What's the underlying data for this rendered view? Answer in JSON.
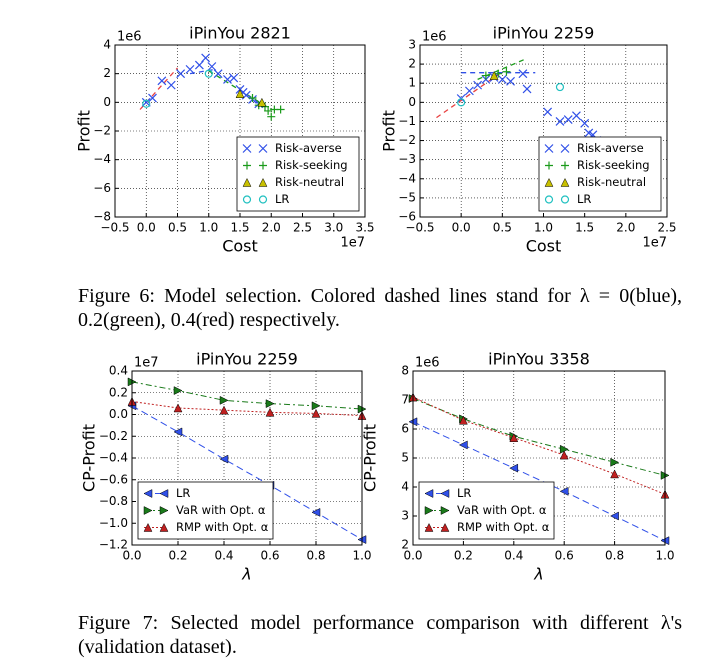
{
  "chart_data": [
    {
      "type": "scatter",
      "title": "iPinYou 2821",
      "x_label": "Cost",
      "y_label": "Profit",
      "x_offset_label": "1e7",
      "y_offset_label": "1e6",
      "xlim": [
        -0.5,
        3.5
      ],
      "ylim": [
        -8,
        4
      ],
      "xticks": [
        {
          "value": -0.5,
          "label": "−0.5"
        },
        {
          "value": 0,
          "label": "0.0"
        },
        0.5,
        {
          "value": 1,
          "label": "1.0"
        },
        1.5,
        {
          "value": 2,
          "label": "2.0"
        },
        2.5,
        {
          "value": 3,
          "label": "3.0"
        },
        3.5
      ],
      "yticks": [
        {
          "value": -8,
          "label": "−8"
        },
        {
          "value": -6,
          "label": "−6"
        },
        {
          "value": -4,
          "label": "−4"
        },
        {
          "value": -2,
          "label": "−2"
        },
        0,
        2,
        4
      ],
      "grid": true,
      "legend": "lower right",
      "series": [
        {
          "name": "Risk-averse",
          "color": "#3050e8",
          "marker": "x",
          "x": [
            0.0,
            0.1,
            0.25,
            0.4,
            0.55,
            0.7,
            0.85,
            0.95,
            1.05,
            1.15,
            1.3,
            1.4,
            1.5,
            1.55,
            1.6,
            1.7,
            1.8
          ],
          "y": [
            0.0,
            0.3,
            1.5,
            1.2,
            2.0,
            2.3,
            2.6,
            3.1,
            2.5,
            2.0,
            1.6,
            1.7,
            0.9,
            0.7,
            0.5,
            0.2,
            -0.1
          ]
        },
        {
          "name": "Risk-seeking",
          "color": "#1a9a1a",
          "marker": "+",
          "x": [
            1.7,
            1.8,
            1.9,
            1.95,
            2.0,
            2.05,
            2.15
          ],
          "y": [
            0.3,
            -0.2,
            -0.3,
            -0.6,
            -1.0,
            -0.5,
            -0.5
          ]
        },
        {
          "name": "Risk-neutral",
          "color": "#c8c000",
          "marker": "^",
          "x": [
            1.5,
            1.85
          ],
          "y": [
            0.6,
            0.0
          ]
        },
        {
          "name": "LR",
          "color": "#20c0c0",
          "marker": "o",
          "x": [
            0.0,
            1.0
          ],
          "y": [
            -0.1,
            2.0
          ]
        }
      ],
      "fit_lines": [
        {
          "color": "#3050e8",
          "x": [
            0.7,
            1.1
          ],
          "y": [
            2.0,
            2.3
          ]
        },
        {
          "color": "#1a9a1a",
          "x": [
            1.0,
            2.0
          ],
          "y": [
            2.2,
            -0.5
          ]
        },
        {
          "color": "#e84040",
          "x": [
            -0.1,
            0.5
          ],
          "y": [
            -0.5,
            2.4
          ]
        }
      ]
    },
    {
      "type": "scatter",
      "title": "iPinYou 2259",
      "x_label": "Cost",
      "y_label": "Profit",
      "x_offset_label": "1e7",
      "y_offset_label": "1e6",
      "xlim": [
        -0.5,
        2.5
      ],
      "ylim": [
        -6,
        3
      ],
      "xticks": [
        {
          "value": -0.5,
          "label": "−0.5"
        },
        {
          "value": 0,
          "label": "0.0"
        },
        0.5,
        {
          "value": 1,
          "label": "1.0"
        },
        1.5,
        {
          "value": 2,
          "label": "2.0"
        },
        2.5
      ],
      "yticks": [
        {
          "value": -6,
          "label": "−6"
        },
        {
          "value": -5,
          "label": "−5"
        },
        {
          "value": -4,
          "label": "−4"
        },
        {
          "value": -3,
          "label": "−3"
        },
        {
          "value": -2,
          "label": "−2"
        },
        {
          "value": -1,
          "label": "−1"
        },
        0,
        1,
        2,
        3
      ],
      "grid": true,
      "legend": "lower right",
      "series": [
        {
          "name": "Risk-averse",
          "color": "#3050e8",
          "marker": "x",
          "x": [
            0.0,
            0.1,
            0.2,
            0.3,
            0.4,
            0.5,
            0.6,
            0.75,
            0.8,
            1.05,
            1.2,
            1.3,
            1.4,
            1.5,
            1.55,
            1.6,
            1.65
          ],
          "y": [
            0.2,
            0.6,
            0.9,
            1.2,
            1.3,
            1.2,
            1.1,
            1.5,
            0.7,
            -0.5,
            -1.0,
            -0.9,
            -0.7,
            -1.1,
            -1.6,
            -1.7,
            -2.0
          ]
        },
        {
          "name": "Risk-seeking",
          "color": "#1a9a1a",
          "marker": "+",
          "x": [
            0.3,
            0.45,
            0.55
          ],
          "y": [
            1.4,
            1.5,
            1.6
          ]
        },
        {
          "name": "Risk-neutral",
          "color": "#c8c000",
          "marker": "^",
          "x": [
            0.4
          ],
          "y": [
            1.4
          ]
        },
        {
          "name": "LR",
          "color": "#20c0c0",
          "marker": "o",
          "x": [
            0.0,
            1.2
          ],
          "y": [
            0.0,
            0.8
          ]
        }
      ],
      "fit_lines": [
        {
          "color": "#3050e8",
          "x": [
            0.0,
            0.9
          ],
          "y": [
            1.55,
            1.55
          ]
        },
        {
          "color": "#1a9a1a",
          "x": [
            0.2,
            0.8
          ],
          "y": [
            1.2,
            2.3
          ]
        },
        {
          "color": "#e84040",
          "x": [
            -0.3,
            0.5
          ],
          "y": [
            -0.8,
            1.6
          ]
        }
      ]
    },
    {
      "type": "line",
      "title": "iPinYou 2259",
      "x_label": "λ",
      "y_label": "CP-Profit",
      "y_offset_label": "1e7",
      "x": [
        0.0,
        0.2,
        0.4,
        0.6,
        0.8,
        1.0
      ],
      "xlim": [
        0,
        1
      ],
      "ylim": [
        -1.2,
        0.4
      ],
      "xticks": [
        {
          "value": 0,
          "label": "0.0"
        },
        0.2,
        0.4,
        0.6,
        0.8,
        {
          "value": 1,
          "label": "1.0"
        }
      ],
      "yticks": [
        {
          "value": -1.2,
          "label": "−1.2"
        },
        {
          "value": -1.0,
          "label": "−1.0"
        },
        {
          "value": -0.8,
          "label": "−0.8"
        },
        {
          "value": -0.6,
          "label": "−0.6"
        },
        {
          "value": -0.4,
          "label": "−0.4"
        },
        {
          "value": -0.2,
          "label": "−0.2"
        },
        {
          "value": 0,
          "label": "0.0"
        },
        0.2,
        0.4
      ],
      "grid": true,
      "legend": "lower left",
      "series": [
        {
          "name": "LR",
          "color": "#3050e8",
          "marker": "<",
          "linestyle": "dashed",
          "values": [
            0.08,
            -0.16,
            -0.41,
            -0.65,
            -0.9,
            -1.15
          ]
        },
        {
          "name": "VaR with Opt. α",
          "color": "#1a7a1a",
          "marker": ">",
          "linestyle": "dashdot",
          "values": [
            0.3,
            0.22,
            0.13,
            0.1,
            0.08,
            0.05
          ]
        },
        {
          "name": "RMP with Opt. α",
          "color": "#c02020",
          "marker": "^",
          "linestyle": "dotted",
          "values": [
            0.12,
            0.06,
            0.04,
            0.02,
            0.01,
            -0.01
          ]
        }
      ]
    },
    {
      "type": "line",
      "title": "iPinYou 3358",
      "x_label": "λ",
      "y_label": "CP-Profit",
      "y_offset_label": "1e6",
      "x": [
        0.0,
        0.2,
        0.4,
        0.6,
        0.8,
        1.0
      ],
      "xlim": [
        0,
        1
      ],
      "ylim": [
        2,
        8
      ],
      "xticks": [
        {
          "value": 0,
          "label": "0.0"
        },
        0.2,
        0.4,
        0.6,
        0.8,
        {
          "value": 1,
          "label": "1.0"
        }
      ],
      "yticks": [
        2,
        3,
        4,
        5,
        6,
        7,
        8
      ],
      "grid": true,
      "legend": "lower left",
      "series": [
        {
          "name": "LR",
          "color": "#3050e8",
          "marker": "<",
          "linestyle": "dashed",
          "values": [
            6.25,
            5.45,
            4.65,
            3.85,
            3.0,
            2.15
          ]
        },
        {
          "name": "VaR with Opt. α",
          "color": "#1a7a1a",
          "marker": ">",
          "linestyle": "dashdot",
          "values": [
            7.05,
            6.35,
            5.75,
            5.3,
            4.85,
            4.4
          ]
        },
        {
          "name": "RMP with Opt. α",
          "color": "#c02020",
          "marker": "^",
          "linestyle": "dotted",
          "values": [
            7.1,
            6.3,
            5.7,
            5.1,
            4.45,
            3.75
          ]
        }
      ]
    }
  ],
  "captions": [
    "Figure 6: Model selection. Colored dashed lines stand for λ = 0(blue), 0.2(green), 0.4(red) respectively.",
    "Figure 7: Selected model performance comparison with different λ's (validation dataset)."
  ]
}
